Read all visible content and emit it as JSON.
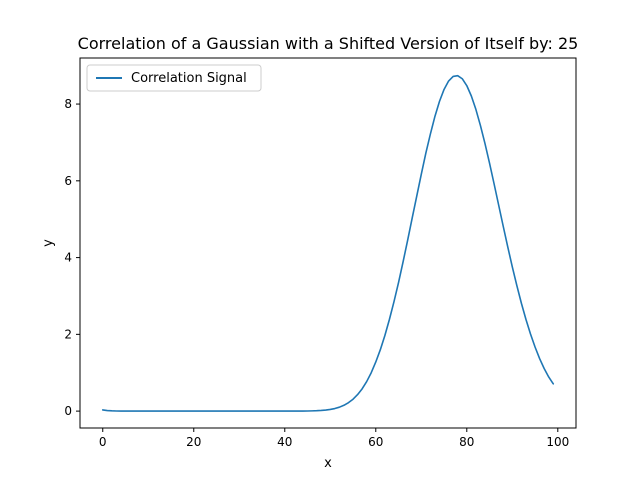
{
  "chart_data": {
    "type": "line",
    "title": "Correlation of a Gaussian with a Shifted Version of Itself by: 25",
    "xlabel": "x",
    "ylabel": "y",
    "xlim": [
      -5,
      104
    ],
    "ylim": [
      -0.44,
      9.2
    ],
    "xticks": [
      0,
      20,
      40,
      60,
      80,
      100
    ],
    "yticks": [
      0,
      2,
      4,
      6,
      8
    ],
    "grid": false,
    "legend_position": "top-left",
    "series": [
      {
        "name": "Correlation Signal",
        "color": "#1f77b4",
        "x": [
          0,
          1,
          2,
          3,
          4,
          5,
          6,
          7,
          8,
          9,
          10,
          11,
          12,
          13,
          14,
          15,
          16,
          17,
          18,
          19,
          20,
          21,
          22,
          23,
          24,
          25,
          26,
          27,
          28,
          29,
          30,
          31,
          32,
          33,
          34,
          35,
          36,
          37,
          38,
          39,
          40,
          41,
          42,
          43,
          44,
          45,
          46,
          47,
          48,
          49,
          50,
          51,
          52,
          53,
          54,
          55,
          56,
          57,
          58,
          59,
          60,
          61,
          62,
          63,
          64,
          65,
          66,
          67,
          68,
          69,
          70,
          71,
          72,
          73,
          74,
          75,
          76,
          77,
          78,
          79,
          80,
          81,
          82,
          83,
          84,
          85,
          86,
          87,
          88,
          89,
          90,
          91,
          92,
          93,
          94,
          95,
          96,
          97,
          98,
          99
        ],
        "y": [
          0.03,
          0.015,
          0.007,
          0.003,
          0.001,
          0,
          0,
          0,
          0,
          0,
          0,
          0,
          0,
          0,
          0,
          0,
          0,
          0,
          0,
          0,
          0,
          0,
          0,
          0,
          0,
          0,
          0,
          0,
          0,
          0,
          0,
          0,
          0,
          0,
          0,
          0,
          0,
          0,
          0,
          0,
          0,
          0,
          0,
          0.001,
          0.002,
          0.003,
          0.006,
          0.01,
          0.017,
          0.028,
          0.044,
          0.067,
          0.102,
          0.152,
          0.22,
          0.31,
          0.43,
          0.58,
          0.77,
          1.0,
          1.28,
          1.6,
          1.97,
          2.39,
          2.85,
          3.35,
          3.89,
          4.45,
          5.03,
          5.6,
          6.17,
          6.72,
          7.22,
          7.68,
          8.07,
          8.38,
          8.6,
          8.72,
          8.74,
          8.66,
          8.48,
          8.21,
          7.86,
          7.44,
          6.97,
          6.46,
          5.92,
          5.37,
          4.82,
          4.28,
          3.76,
          3.27,
          2.81,
          2.39,
          2.01,
          1.67,
          1.37,
          1.11,
          0.89,
          0.71
        ]
      }
    ]
  }
}
